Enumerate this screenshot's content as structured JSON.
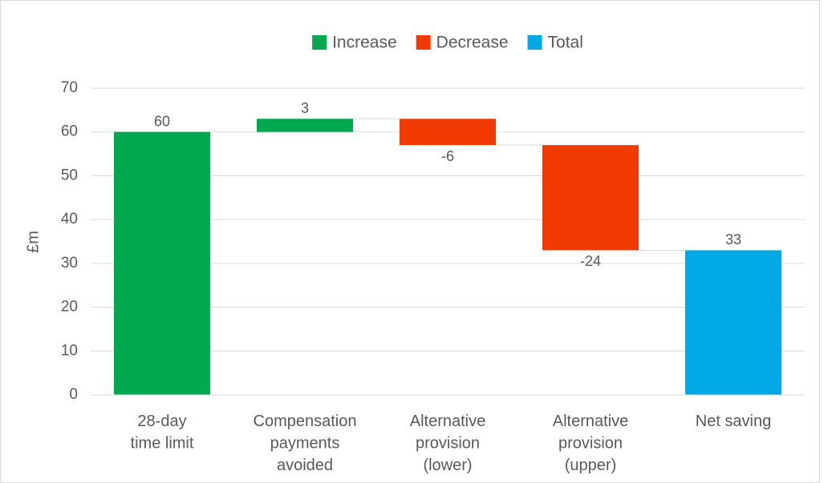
{
  "chart_data": {
    "type": "waterfall",
    "y_label": "£m",
    "legend": [
      {
        "name": "Increase",
        "color": "#00a84f"
      },
      {
        "name": "Decrease",
        "color": "#f03a00"
      },
      {
        "name": "Total",
        "color": "#00a8e6"
      }
    ],
    "categories": [
      [
        "28-day",
        "time limit"
      ],
      [
        "Compensation",
        "payments",
        "avoided"
      ],
      [
        "Alternative",
        "provision",
        "(lower)"
      ],
      [
        "Alternative",
        "provision",
        "(upper)"
      ],
      [
        "Net saving"
      ]
    ],
    "values": [
      60,
      3,
      -6,
      -24,
      33
    ],
    "bar_kinds": [
      0,
      0,
      1,
      1,
      2
    ],
    "ylim": [
      0,
      70
    ],
    "yticks": [
      0,
      10,
      20,
      30,
      40,
      50,
      60,
      70
    ],
    "grid": true
  }
}
